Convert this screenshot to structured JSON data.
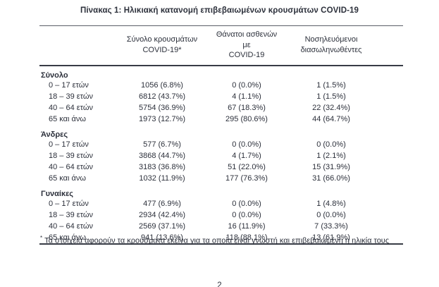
{
  "page": {
    "title": "Πίνακας 1: Ηλικιακή κατανομή επιβεβαιωμένων κρουσμάτων COVID-19",
    "footnote_marker": "*",
    "footnote": "Τα στοιχεία αφορούν τα κρούσματα εκείνα για τα οποία είναι γνωστή και επιβεβαιωμένη η ηλικία τους",
    "page_number": "2"
  },
  "table": {
    "columns": [
      {
        "line1": "Σύνολο κρουσμάτων",
        "line2": "COVID-19*"
      },
      {
        "line1": "Θάνατοι ασθενών με",
        "line2": "COVID-19"
      },
      {
        "line1": "Νοσηλευόμενοι",
        "line2": "διασωληνωθέντες"
      }
    ],
    "sections": [
      {
        "name": "Σύνολο",
        "rows": [
          {
            "label": "0 – 17 ετών",
            "cases": "1056 (6.8%)",
            "deaths": "0 (0.0%)",
            "intubated": "1 (1.5%)"
          },
          {
            "label": "18 – 39 ετών",
            "cases": "6812 (43.7%)",
            "deaths": "4 (1.1%)",
            "intubated": "1 (1.5%)"
          },
          {
            "label": "40 – 64 ετών",
            "cases": "5754 (36.9%)",
            "deaths": "67 (18.3%)",
            "intubated": "22 (32.4%)"
          },
          {
            "label": "65 και άνω",
            "cases": "1973 (12.7%)",
            "deaths": "295 (80.6%)",
            "intubated": "44 (64.7%)"
          }
        ]
      },
      {
        "name": "Άνδρες",
        "rows": [
          {
            "label": "0 – 17 ετών",
            "cases": "577 (6.7%)",
            "deaths": "0 (0.0%)",
            "intubated": "0 (0.0%)"
          },
          {
            "label": "18 – 39 ετών",
            "cases": "3868 (44.7%)",
            "deaths": "4 (1.7%)",
            "intubated": "1 (2.1%)"
          },
          {
            "label": "40 – 64 ετών",
            "cases": "3183 (36.8%)",
            "deaths": "51 (22.0%)",
            "intubated": "15 (31.9%)"
          },
          {
            "label": "65 και άνω",
            "cases": "1032 (11.9%)",
            "deaths": "177 (76.3%)",
            "intubated": "31 (66.0%)"
          }
        ]
      },
      {
        "name": "Γυναίκες",
        "rows": [
          {
            "label": "0 – 17 ετών",
            "cases": "477 (6.9%)",
            "deaths": "0 (0.0%)",
            "intubated": "1 (4.8%)"
          },
          {
            "label": "18 – 39 ετών",
            "cases": "2934 (42.4%)",
            "deaths": "0 (0.0%)",
            "intubated": "0 (0.0%)"
          },
          {
            "label": "40 – 64 ετών",
            "cases": "2569 (37.1%)",
            "deaths": "16 (11.9%)",
            "intubated": "7 (33.3%)"
          },
          {
            "label": "65 και άνω",
            "cases": "941 (13.6%)",
            "deaths": "118 (88.1%)",
            "intubated": "13 (61.9%)"
          }
        ]
      }
    ]
  }
}
